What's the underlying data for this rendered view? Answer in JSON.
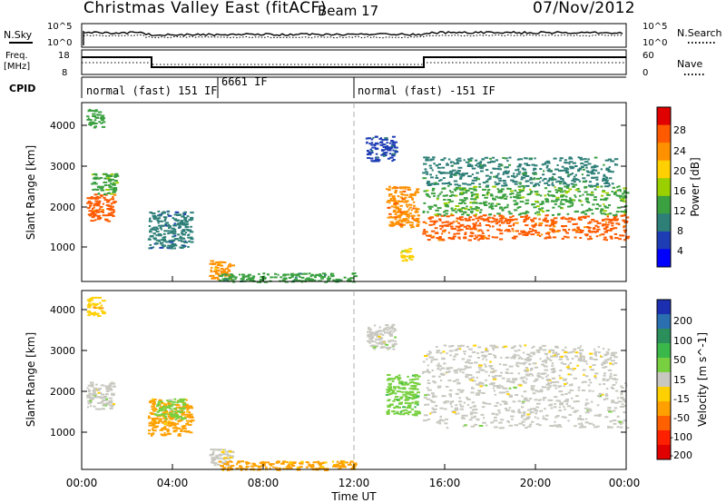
{
  "header": {
    "title": "Christmas Valley East (fitACF)",
    "beam": "Beam 17",
    "date": "07/Nov/2012"
  },
  "strip_nsky": {
    "left_label": "N.Sky",
    "right_label": "N.Search",
    "left_ticks": [
      "10^5",
      "10^0"
    ],
    "right_ticks": [
      "10^5",
      "10^0"
    ]
  },
  "strip_freq": {
    "left_label_1": "Freq.",
    "left_label_2": "[MHz]",
    "right_label": "Nave",
    "left_ticks": [
      "18",
      "8"
    ],
    "right_ticks": [
      "60",
      "0"
    ]
  },
  "cpid": {
    "label": "CPID",
    "segments": [
      {
        "text": "normal (fast) 151 IF",
        "start": 0
      },
      {
        "text": "6661 IF",
        "start": 6
      },
      {
        "text": "normal (fast) -151 IF",
        "start": 12
      }
    ]
  },
  "power_colorbar": {
    "label": "Power [dB]",
    "ticks": [
      "28",
      "24",
      "20",
      "16",
      "12",
      "8",
      "4"
    ],
    "colors": [
      "#e00000",
      "#ff5a00",
      "#ff9000",
      "#ffd000",
      "#9ad000",
      "#3aa040",
      "#2d7f78",
      "#1e3cb4",
      "#0000ff"
    ]
  },
  "velocity_colorbar": {
    "label": "Velocity [m s^-1]",
    "ticks": [
      "200",
      "100",
      "50",
      "15",
      "-15",
      "-50",
      "-100",
      "-200"
    ],
    "colors": [
      "#1b2fb0",
      "#2a6fb0",
      "#2a8f5a",
      "#3ab84a",
      "#78d040",
      "#c8c8c0",
      "#ffd000",
      "#ffa000",
      "#ff6000",
      "#ff2000",
      "#e00000"
    ]
  },
  "axes": {
    "xlabel": "Time UT",
    "ylabel": "Slant Range [km]",
    "xticks": [
      "00:00",
      "04:00",
      "08:00",
      "12:00",
      "16:00",
      "20:00",
      "00:00"
    ],
    "yticks": [
      "4000",
      "3000",
      "2000",
      "1000"
    ]
  },
  "chart_data": {
    "type": "heatmap",
    "x_unit": "hours UT",
    "xlim": [
      0,
      24
    ],
    "ylim": [
      180,
      4500
    ],
    "panels": [
      {
        "quantity": "Power",
        "unit": "dB",
        "clim": [
          0,
          32
        ],
        "regions": [
          {
            "x": [
              0.2,
              0.9
            ],
            "y": [
              3900,
              4350
            ],
            "value": 12
          },
          {
            "x": [
              0.2,
              1.4
            ],
            "y": [
              1650,
              2300
            ],
            "value": 26
          },
          {
            "x": [
              0.4,
              1.5
            ],
            "y": [
              2300,
              2800
            ],
            "value": 14
          },
          {
            "x": [
              2.9,
              4.8
            ],
            "y": [
              1000,
              1900
            ],
            "value": 8
          },
          {
            "x": [
              5.6,
              6.6
            ],
            "y": [
              250,
              700
            ],
            "value": 22
          },
          {
            "x": [
              6.0,
              12.0
            ],
            "y": [
              180,
              400
            ],
            "value": 12
          },
          {
            "x": [
              12.5,
              13.8
            ],
            "y": [
              3100,
              3700
            ],
            "value": 6
          },
          {
            "x": [
              13.4,
              14.8
            ],
            "y": [
              1500,
              2500
            ],
            "value": 24
          },
          {
            "x": [
              14.0,
              14.5
            ],
            "y": [
              700,
              1000
            ],
            "value": 18
          },
          {
            "x": [
              15.0,
              24.0
            ],
            "y": [
              1200,
              1800
            ],
            "value": 26
          },
          {
            "x": [
              15.0,
              24.0
            ],
            "y": [
              1800,
              2500
            ],
            "value": 14
          },
          {
            "x": [
              15.0,
              23.5
            ],
            "y": [
              2500,
              3200
            ],
            "value": 10
          }
        ]
      },
      {
        "quantity": "Velocity",
        "unit": "m s^-1",
        "clim": [
          -250,
          250
        ],
        "regions": [
          {
            "x": [
              0.2,
              0.9
            ],
            "y": [
              3900,
              4350
            ],
            "value": -60
          },
          {
            "x": [
              0.2,
              1.4
            ],
            "y": [
              1650,
              2300
            ],
            "value": 0
          },
          {
            "x": [
              2.9,
              4.8
            ],
            "y": [
              1000,
              1900
            ],
            "value": -80
          },
          {
            "x": [
              3.2,
              4.5
            ],
            "y": [
              1400,
              1900
            ],
            "value": 40
          },
          {
            "x": [
              5.6,
              6.6
            ],
            "y": [
              250,
              700
            ],
            "value": -20
          },
          {
            "x": [
              6.0,
              12.0
            ],
            "y": [
              180,
              400
            ],
            "value": -70
          },
          {
            "x": [
              12.5,
              13.8
            ],
            "y": [
              3100,
              3700
            ],
            "value": 5
          },
          {
            "x": [
              13.4,
              14.8
            ],
            "y": [
              1500,
              2500
            ],
            "value": 60
          },
          {
            "x": [
              15.0,
              24.0
            ],
            "y": [
              1200,
              2300
            ],
            "value": 0
          },
          {
            "x": [
              15.0,
              23.5
            ],
            "y": [
              2300,
              3200
            ],
            "value": -10
          }
        ]
      }
    ]
  }
}
